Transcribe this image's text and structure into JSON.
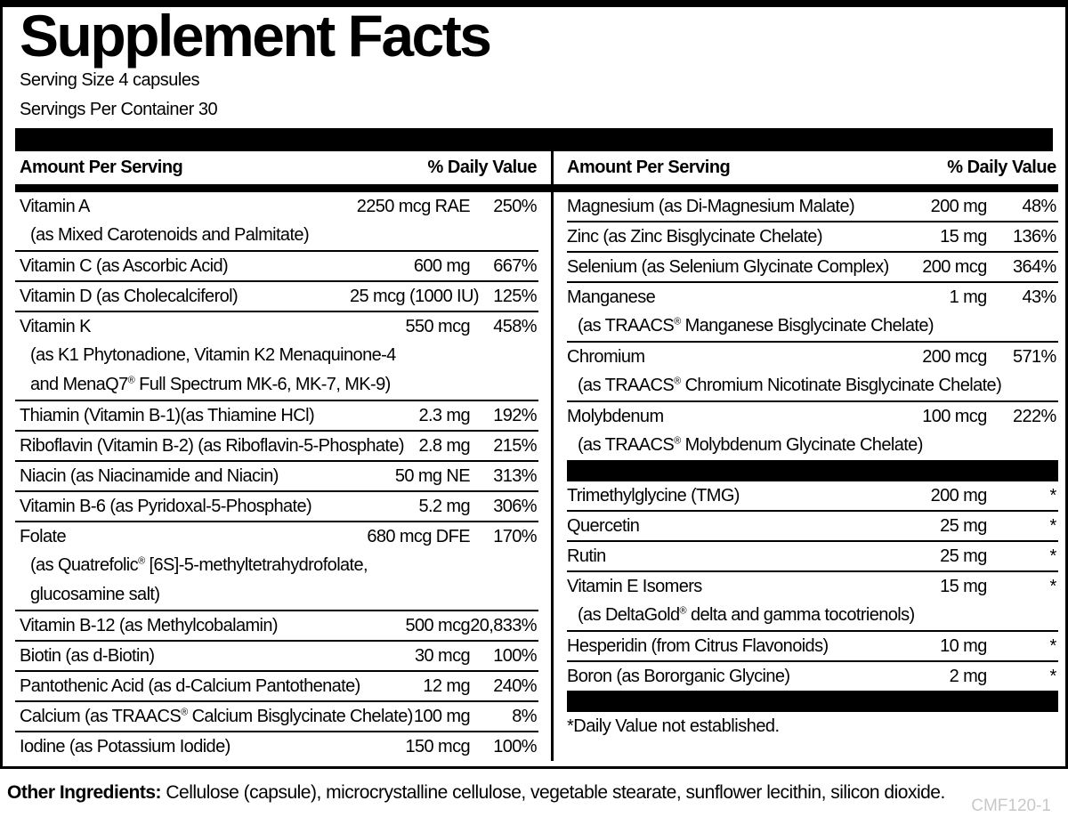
{
  "title": "Supplement Facts",
  "serving_info": {
    "serving_size": "Serving Size 4 capsules",
    "servings_per_container": "Servings Per Container 30"
  },
  "table": {
    "header": {
      "amount_label": "Amount Per Serving",
      "daily_value_label": "% Daily Value"
    },
    "left_column": {
      "items": [
        {
          "type": "row",
          "name": "Vitamin A",
          "amount": "2250 mcg RAE",
          "dv": "250%",
          "subs": [
            "(as Mixed Carotenoids and Palmitate)"
          ]
        },
        {
          "type": "row",
          "name": "Vitamin C (as Ascorbic Acid)",
          "amount": "600 mg",
          "dv": "667%"
        },
        {
          "type": "row",
          "name": "Vitamin D (as Cholecalciferol)",
          "amount": "25 mcg (1000 IU)",
          "dv": "125%"
        },
        {
          "type": "row",
          "name": "Vitamin K",
          "amount": "550 mcg",
          "dv": "458%",
          "subs": [
            "(as K1 Phytonadione, Vitamin K2 Menaquinone-4",
            "and MenaQ7® Full Spectrum MK-6, MK-7, MK-9)"
          ]
        },
        {
          "type": "row",
          "name": "Thiamin (Vitamin B-1)(as Thiamine HCl)",
          "amount": "2.3 mg",
          "dv": "192%"
        },
        {
          "type": "row",
          "name": "Riboflavin (Vitamin B-2) (as Riboflavin-5-Phosphate)",
          "amount": "2.8 mg",
          "dv": "215%"
        },
        {
          "type": "row",
          "name": "Niacin (as Niacinamide and Niacin)",
          "amount": "50 mg NE",
          "dv": "313%"
        },
        {
          "type": "row",
          "name": "Vitamin B-6 (as Pyridoxal-5-Phosphate)",
          "amount": "5.2 mg",
          "dv": "306%"
        },
        {
          "type": "row",
          "name": "Folate",
          "amount": "680 mcg DFE",
          "dv": "170%",
          "subs": [
            "(as Quatrefolic® [6S]-5-methyltetrahydrofolate,",
            "glucosamine salt)"
          ]
        },
        {
          "type": "row",
          "name": "Vitamin B-12 (as Methylcobalamin)",
          "amount": "500 mcg",
          "dv": "20,833%"
        },
        {
          "type": "row",
          "name": "Biotin (as d-Biotin)",
          "amount": "30 mcg",
          "dv": "100%"
        },
        {
          "type": "row",
          "name": "Pantothenic Acid (as d-Calcium Pantothenate)",
          "amount": "12 mg",
          "dv": "240%"
        },
        {
          "type": "row",
          "name": "Calcium (as TRAACS® Calcium Bisglycinate Chelate)",
          "amount": "100 mg",
          "dv": "8%"
        },
        {
          "type": "row",
          "name": "Iodine (as Potassium Iodide)",
          "amount": "150 mcg",
          "dv": "100%",
          "no_border": true
        }
      ]
    },
    "right_column": {
      "items": [
        {
          "type": "row",
          "name": "Magnesium (as Di-Magnesium Malate)",
          "amount": "200 mg",
          "dv": "48%"
        },
        {
          "type": "row",
          "name": "Zinc (as Zinc Bisglycinate Chelate)",
          "amount": "15 mg",
          "dv": "136%"
        },
        {
          "type": "row",
          "name": "Selenium (as Selenium Glycinate Complex)",
          "amount": "200 mcg",
          "dv": "364%"
        },
        {
          "type": "row",
          "name": "Manganese",
          "amount": "1 mg",
          "dv": "43%",
          "subs": [
            "(as TRAACS® Manganese Bisglycinate Chelate)"
          ]
        },
        {
          "type": "row",
          "name": "Chromium",
          "amount": "200 mcg",
          "dv": "571%",
          "subs": [
            "(as TRAACS® Chromium Nicotinate Bisglycinate Chelate)"
          ]
        },
        {
          "type": "row",
          "name": "Molybdenum",
          "amount": "100 mcg",
          "dv": "222%",
          "subs": [
            "(as TRAACS® Molybdenum Glycinate Chelate)"
          ],
          "no_border": true
        },
        {
          "type": "bar"
        },
        {
          "type": "row",
          "name": "Trimethylglycine (TMG)",
          "amount": "200 mg",
          "dv": "*"
        },
        {
          "type": "row",
          "name": "Quercetin",
          "amount": "25 mg",
          "dv": "*"
        },
        {
          "type": "row",
          "name": "Rutin",
          "amount": "25 mg",
          "dv": "*"
        },
        {
          "type": "row",
          "name": "Vitamin E Isomers",
          "amount": "15 mg",
          "dv": "*",
          "subs": [
            "(as DeltaGold® delta and gamma tocotrienols)"
          ]
        },
        {
          "type": "row",
          "name": "Hesperidin (from Citrus Flavonoids)",
          "amount": "10 mg",
          "dv": "*"
        },
        {
          "type": "row",
          "name": "Boron (as Bororganic Glycine)",
          "amount": "2 mg",
          "dv": "*",
          "no_border": true
        },
        {
          "type": "bar"
        },
        {
          "type": "footnote",
          "text": "*Daily Value not established."
        }
      ]
    }
  },
  "other_ingredients": {
    "label": "Other Ingredients:",
    "text": "Cellulose (capsule), microcrystalline cellulose, vegetable stearate, sunflower lecithin, silicon dioxide."
  },
  "product_code": "CMF120-1",
  "colors": {
    "ink": "#000000",
    "paper": "#ffffff",
    "product_code_gray": "#c8c8c8"
  }
}
